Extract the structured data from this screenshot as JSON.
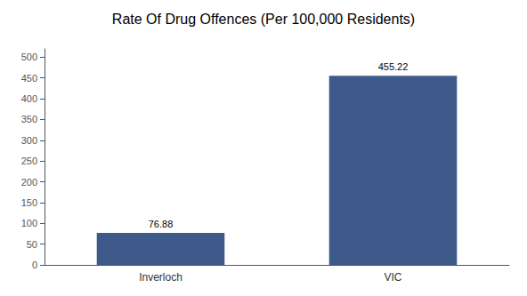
{
  "chart_data": {
    "type": "bar",
    "title": "Rate Of Drug Offences (Per 100,000 Residents)",
    "categories": [
      "Inverloch",
      "VIC"
    ],
    "values": [
      76.88,
      455.22
    ],
    "color": "#3d5a8a",
    "ylim": [
      0,
      520
    ],
    "yticks": [
      0,
      50,
      100,
      150,
      200,
      250,
      300,
      350,
      400,
      450,
      500
    ],
    "grid": false,
    "data_labels": true
  }
}
